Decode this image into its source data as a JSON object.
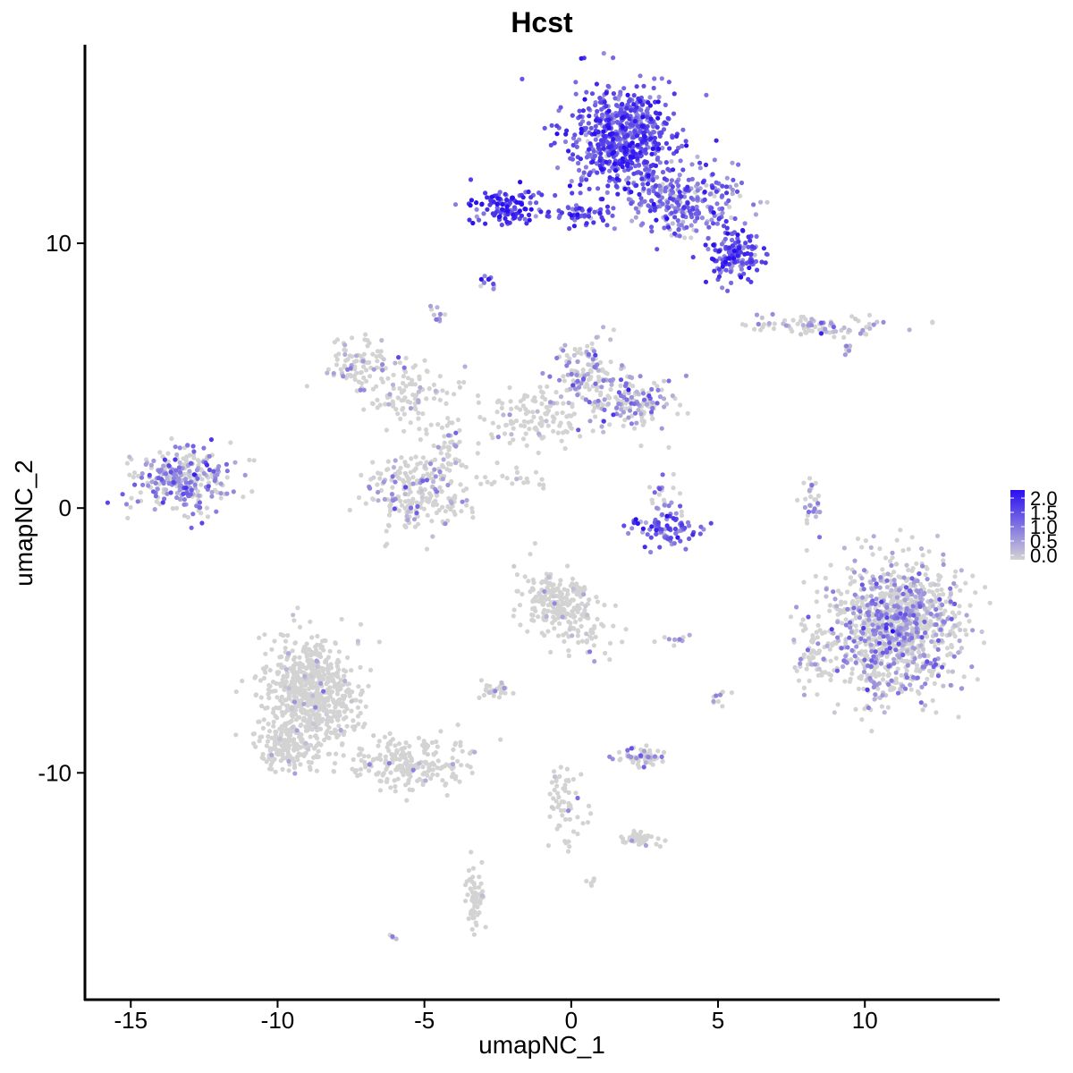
{
  "chart_data": {
    "type": "scatter",
    "title": "Hcst",
    "xlabel": "umapNC_1",
    "ylabel": "umapNC_2",
    "xlim": [
      -16.5,
      14.5
    ],
    "ylim": [
      -18.5,
      17.5
    ],
    "x_ticks": [
      -15,
      -10,
      -5,
      0,
      5,
      10
    ],
    "x_tick_labels": [
      "-15",
      "-10",
      "-5",
      "0",
      "5",
      "10"
    ],
    "y_ticks": [
      -10,
      0,
      10
    ],
    "y_tick_labels": [
      "-10",
      "0",
      "10"
    ],
    "grid": false,
    "legend_position": "right",
    "colorbar": {
      "min": 0.0,
      "max": 2.0,
      "ticks": [
        0.0,
        0.5,
        1.0,
        1.5,
        2.0
      ],
      "tick_labels": [
        "0.0",
        "0.5",
        "1.0",
        "1.5",
        "2.0"
      ],
      "low_color": "#d3d3d3",
      "high_color": "#2a0ff0"
    },
    "clusters": [
      {
        "cx": 1.8,
        "cy": 14.0,
        "sx": 0.9,
        "sy": 1.0,
        "n": 650,
        "expr": 1.25
      },
      {
        "cx": 3.8,
        "cy": 11.6,
        "sx": 1.0,
        "sy": 0.6,
        "n": 260,
        "expr": 1.0
      },
      {
        "cx": 5.5,
        "cy": 9.6,
        "sx": 0.45,
        "sy": 0.5,
        "n": 150,
        "expr": 1.3
      },
      {
        "cx": -2.2,
        "cy": 11.4,
        "sx": 0.6,
        "sy": 0.35,
        "n": 120,
        "expr": 1.5
      },
      {
        "cx": 0.3,
        "cy": 11.1,
        "sx": 0.6,
        "sy": 0.2,
        "n": 50,
        "expr": 1.4
      },
      {
        "cx": -2.8,
        "cy": 8.6,
        "sx": 0.15,
        "sy": 0.15,
        "n": 12,
        "expr": 1.0
      },
      {
        "cx": -4.5,
        "cy": 7.4,
        "sx": 0.15,
        "sy": 0.2,
        "n": 10,
        "expr": 0.8
      },
      {
        "cx": 8.4,
        "cy": 6.9,
        "sx": 1.2,
        "sy": 0.2,
        "n": 90,
        "expr": 0.5
      },
      {
        "cx": -7.3,
        "cy": 5.4,
        "sx": 0.6,
        "sy": 0.5,
        "n": 90,
        "expr": 0.3
      },
      {
        "cx": -5.5,
        "cy": 4.2,
        "sx": 0.9,
        "sy": 0.6,
        "n": 100,
        "expr": 0.15
      },
      {
        "cx": 0.5,
        "cy": 5.2,
        "sx": 0.6,
        "sy": 0.7,
        "n": 130,
        "expr": 0.5
      },
      {
        "cx": 2.0,
        "cy": 4.0,
        "sx": 0.8,
        "sy": 0.5,
        "n": 150,
        "expr": 0.55
      },
      {
        "cx": -1.5,
        "cy": 3.3,
        "sx": 1.0,
        "sy": 0.6,
        "n": 120,
        "expr": 0.2
      },
      {
        "cx": -13.2,
        "cy": 1.1,
        "sx": 0.8,
        "sy": 0.6,
        "n": 300,
        "expr": 0.7
      },
      {
        "cx": -5.2,
        "cy": 0.5,
        "sx": 0.8,
        "sy": 0.7,
        "n": 230,
        "expr": 0.3
      },
      {
        "cx": -4.2,
        "cy": 2.4,
        "sx": 0.3,
        "sy": 0.6,
        "n": 40,
        "expr": 0.3
      },
      {
        "cx": -2.0,
        "cy": 1.0,
        "sx": 0.6,
        "sy": 0.2,
        "n": 20,
        "expr": 0.1
      },
      {
        "cx": 3.3,
        "cy": -0.8,
        "sx": 0.6,
        "sy": 0.3,
        "n": 80,
        "expr": 1.2
      },
      {
        "cx": 3.2,
        "cy": 0.5,
        "sx": 0.3,
        "sy": 0.5,
        "n": 25,
        "expr": 0.8
      },
      {
        "cx": 8.2,
        "cy": 0.0,
        "sx": 0.2,
        "sy": 0.6,
        "n": 30,
        "expr": 0.6
      },
      {
        "cx": 11.0,
        "cy": -4.5,
        "sx": 1.1,
        "sy": 1.25,
        "n": 1100,
        "expr": 0.5
      },
      {
        "cx": 8.4,
        "cy": -5.6,
        "sx": 0.4,
        "sy": 0.6,
        "n": 60,
        "expr": 0.3
      },
      {
        "cx": -0.4,
        "cy": -3.6,
        "sx": 0.6,
        "sy": 0.6,
        "n": 230,
        "expr": 0.1
      },
      {
        "cx": 0.7,
        "cy": -5.0,
        "sx": 0.4,
        "sy": 0.5,
        "n": 30,
        "expr": 0.1
      },
      {
        "cx": -2.6,
        "cy": -6.9,
        "sx": 0.3,
        "sy": 0.15,
        "n": 30,
        "expr": 0.3
      },
      {
        "cx": -8.8,
        "cy": -7.0,
        "sx": 0.8,
        "sy": 1.0,
        "n": 650,
        "expr": 0.03
      },
      {
        "cx": -9.7,
        "cy": -9.0,
        "sx": 0.5,
        "sy": 0.4,
        "n": 150,
        "expr": 0.03
      },
      {
        "cx": -5.5,
        "cy": -9.6,
        "sx": 1.2,
        "sy": 0.5,
        "n": 220,
        "expr": 0.03
      },
      {
        "cx": 2.4,
        "cy": -9.4,
        "sx": 0.4,
        "sy": 0.2,
        "n": 60,
        "expr": 0.4
      },
      {
        "cx": 2.3,
        "cy": -12.5,
        "sx": 0.3,
        "sy": 0.15,
        "n": 50,
        "expr": 0.05
      },
      {
        "cx": -0.2,
        "cy": -11.2,
        "sx": 0.3,
        "sy": 0.8,
        "n": 60,
        "expr": 0.02
      },
      {
        "cx": -3.3,
        "cy": -14.8,
        "sx": 0.15,
        "sy": 0.6,
        "n": 60,
        "expr": 0.03
      },
      {
        "cx": -6.0,
        "cy": -16.2,
        "sx": 0.1,
        "sy": 0.08,
        "n": 5,
        "expr": 0.5
      },
      {
        "cx": 0.7,
        "cy": -14.1,
        "sx": 0.1,
        "sy": 0.08,
        "n": 6,
        "expr": 0.0
      },
      {
        "cx": 5.0,
        "cy": -7.2,
        "sx": 0.2,
        "sy": 0.2,
        "n": 10,
        "expr": 0.4
      },
      {
        "cx": 3.4,
        "cy": -4.9,
        "sx": 0.3,
        "sy": 0.1,
        "n": 10,
        "expr": 0.2
      },
      {
        "cx": 9.4,
        "cy": 6.0,
        "sx": 0.2,
        "sy": 0.2,
        "n": 10,
        "expr": 0.4
      }
    ]
  }
}
